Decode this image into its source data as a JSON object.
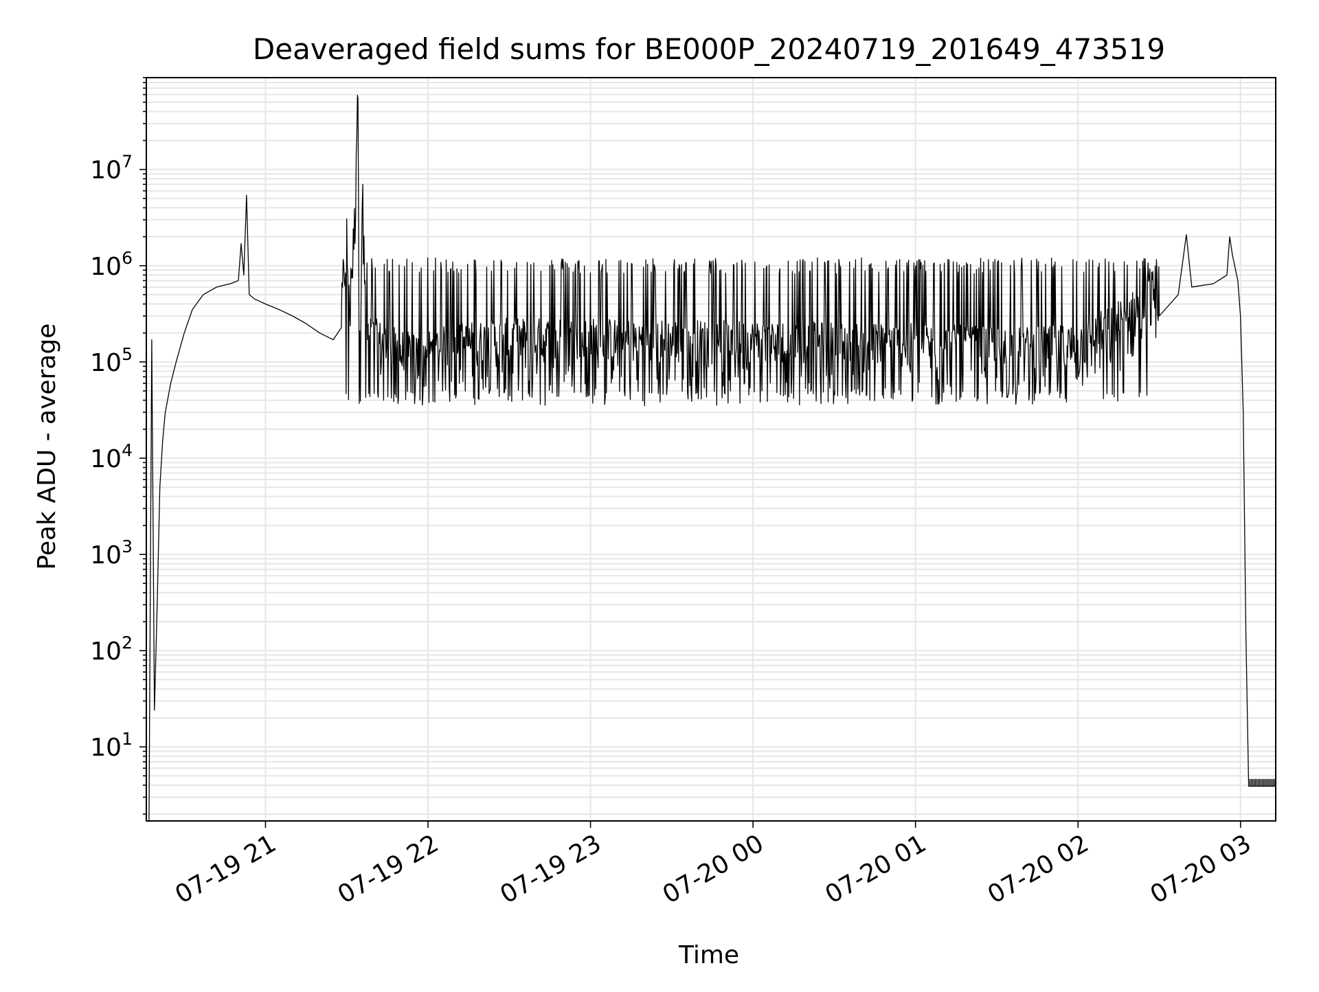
{
  "chart_data": {
    "type": "line",
    "title": "Deaveraged field sums for BE000P_20240719_201649_473519",
    "xlabel": "Time",
    "ylabel": "Peak ADU - average",
    "y_scale": "log",
    "ylim": [
      1.7,
      90000000
    ],
    "xlim": [
      "2024-07-19 20:16",
      "2024-07-20 03:13"
    ],
    "grid": true,
    "grid_color": "#e6e6e6",
    "line_color": "#000000",
    "x_ticks": [
      {
        "t": "2024-07-19 21:00",
        "label": "07-19 21"
      },
      {
        "t": "2024-07-19 22:00",
        "label": "07-19 22"
      },
      {
        "t": "2024-07-19 23:00",
        "label": "07-19 23"
      },
      {
        "t": "2024-07-20 00:00",
        "label": "07-20 00"
      },
      {
        "t": "2024-07-20 01:00",
        "label": "07-20 01"
      },
      {
        "t": "2024-07-20 02:00",
        "label": "07-20 02"
      },
      {
        "t": "2024-07-20 03:00",
        "label": "07-20 03"
      }
    ],
    "y_ticks": [
      {
        "v": 10,
        "base": "10",
        "exp": "1"
      },
      {
        "v": 100,
        "base": "10",
        "exp": "2"
      },
      {
        "v": 1000,
        "base": "10",
        "exp": "3"
      },
      {
        "v": 10000,
        "base": "10",
        "exp": "4"
      },
      {
        "v": 100000,
        "base": "10",
        "exp": "5"
      },
      {
        "v": 1000000,
        "base": "10",
        "exp": "6"
      },
      {
        "v": 10000000,
        "base": "10",
        "exp": "7"
      }
    ],
    "series": [
      {
        "points": [
          [
            "2024-07-19 20:17",
            1.7
          ],
          [
            "2024-07-19 20:18",
            170000
          ],
          [
            "2024-07-19 20:19",
            24
          ],
          [
            "2024-07-19 20:20",
            300
          ],
          [
            "2024-07-19 20:21",
            5000
          ],
          [
            "2024-07-19 20:22",
            15000
          ],
          [
            "2024-07-19 20:23",
            30000
          ],
          [
            "2024-07-19 20:25",
            60000
          ],
          [
            "2024-07-19 20:27",
            100000
          ],
          [
            "2024-07-19 20:30",
            200000
          ],
          [
            "2024-07-19 20:33",
            350000
          ],
          [
            "2024-07-19 20:37",
            500000
          ],
          [
            "2024-07-19 20:42",
            600000
          ],
          [
            "2024-07-19 20:47",
            650000
          ],
          [
            "2024-07-19 20:50",
            700000
          ],
          [
            "2024-07-19 20:51",
            1700000
          ],
          [
            "2024-07-19 20:52",
            800000
          ],
          [
            "2024-07-19 20:53",
            5400000
          ],
          [
            "2024-07-19 20:54",
            500000
          ],
          [
            "2024-07-19 20:56",
            450000
          ],
          [
            "2024-07-19 21:00",
            400000
          ],
          [
            "2024-07-19 21:05",
            350000
          ],
          [
            "2024-07-19 21:10",
            300000
          ],
          [
            "2024-07-19 21:15",
            250000
          ],
          [
            "2024-07-19 21:20",
            200000
          ],
          [
            "2024-07-19 21:25",
            170000
          ],
          [
            "2024-07-19 21:28",
            150000
          ],
          [
            "2024-07-19 21:30",
            1000000
          ],
          [
            "2024-07-19 21:31",
            150000
          ],
          [
            "2024-07-19 21:33",
            1500000
          ],
          [
            "2024-07-19 21:34",
            40000000
          ],
          [
            "2024-07-19 21:35",
            120000
          ],
          [
            "2024-07-19 21:36",
            3400000
          ],
          [
            "2024-07-19 21:37",
            100000
          ],
          [
            "2024-07-19 21:40",
            80000
          ],
          [
            "2024-07-19 21:45",
            70000
          ],
          [
            "2024-07-19 21:50",
            60000
          ],
          [
            "2024-07-19 21:55",
            55000
          ],
          [
            "2024-07-19 22:00",
            60000
          ],
          [
            "2024-07-19 22:10",
            70000
          ],
          [
            "2024-07-19 22:30",
            80000
          ],
          [
            "2024-07-19 23:00",
            80000
          ],
          [
            "2024-07-20 00:00",
            75000
          ],
          [
            "2024-07-20 01:00",
            70000
          ],
          [
            "2024-07-20 01:30",
            65000
          ],
          [
            "2024-07-20 01:45",
            65000
          ],
          [
            "2024-07-20 02:00",
            70000
          ],
          [
            "2024-07-20 02:10",
            100000
          ],
          [
            "2024-07-20 02:20",
            150000
          ],
          [
            "2024-07-20 02:30",
            300000
          ],
          [
            "2024-07-20 02:37",
            500000
          ],
          [
            "2024-07-20 02:40",
            2100000
          ],
          [
            "2024-07-20 02:42",
            600000
          ],
          [
            "2024-07-20 02:50",
            650000
          ],
          [
            "2024-07-20 02:55",
            800000
          ],
          [
            "2024-07-20 02:56",
            2000000
          ],
          [
            "2024-07-20 02:57",
            1300000
          ],
          [
            "2024-07-20 02:59",
            700000
          ],
          [
            "2024-07-20 03:00",
            300000
          ],
          [
            "2024-07-20 03:01",
            30000
          ],
          [
            "2024-07-20 03:02",
            150
          ],
          [
            "2024-07-20 03:03",
            3.9
          ],
          [
            "2024-07-20 03:13",
            3.9
          ]
        ],
        "noise_band": {
          "from": "2024-07-19 21:28",
          "to": "2024-07-20 02:30",
          "low_baseline": 55000,
          "high_spikes": 1100000,
          "min": 35000,
          "spike_note_values": [
            1200000,
            1000000,
            2100000
          ]
        }
      }
    ]
  }
}
